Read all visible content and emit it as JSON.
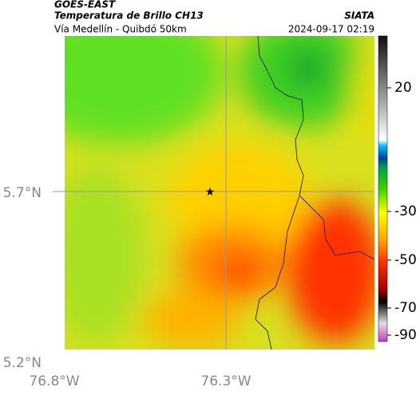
{
  "header": {
    "source": "GOES-EAST",
    "title": "Temperatura de Brillo CH13",
    "subtitle": "Vía Medellín - Quibdó 50km",
    "agency": "SIATA",
    "datetime": "2024-09-17 02:19"
  },
  "axes": {
    "y_labels": [
      "5.7°N",
      "5.2°N"
    ],
    "x_labels": [
      "76.8°W",
      "76.3°W"
    ]
  },
  "colorbar": {
    "ticks": [
      20,
      -30,
      -50,
      -70,
      -90
    ]
  }
}
